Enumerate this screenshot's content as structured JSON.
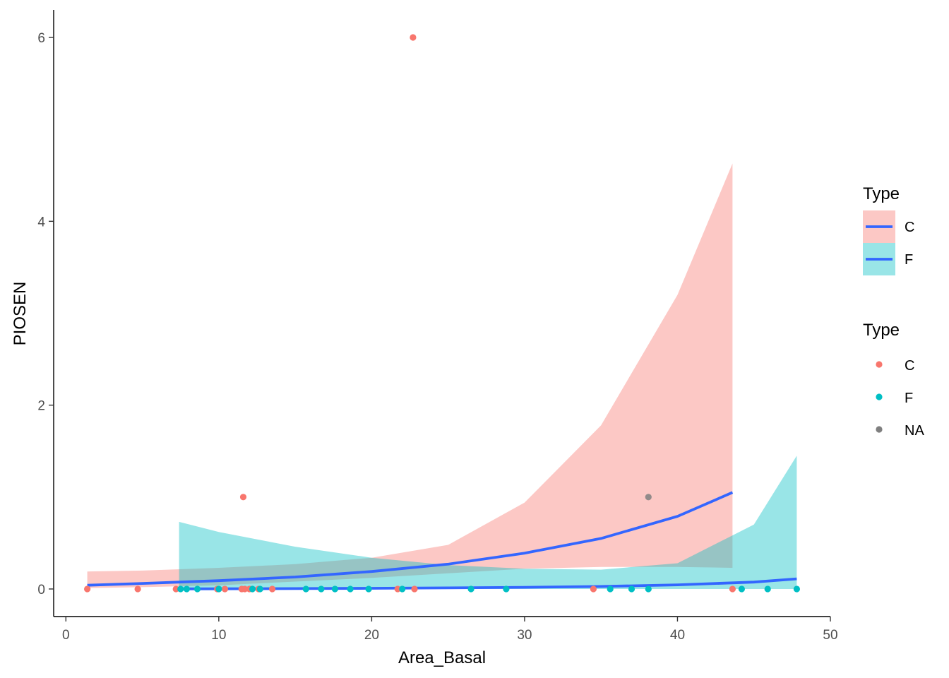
{
  "chart_data": {
    "type": "scatter",
    "xlabel": "Area_Basal",
    "ylabel": "PIOSEN",
    "xlim": [
      -0.8,
      50
    ],
    "ylim": [
      -0.3,
      6.3
    ],
    "x_ticks": [
      0,
      10,
      20,
      30,
      40,
      50
    ],
    "y_ticks": [
      0,
      2,
      4,
      6
    ],
    "grid": false,
    "colors": {
      "C": "#F8766D",
      "F": "#00BFC4",
      "NA": "#7F7F7F",
      "fit_line": "#3366FF"
    },
    "points": {
      "C": [
        {
          "x": 1.4,
          "y": 0
        },
        {
          "x": 4.7,
          "y": 0
        },
        {
          "x": 7.2,
          "y": 0
        },
        {
          "x": 9.9,
          "y": 0
        },
        {
          "x": 10.4,
          "y": 0
        },
        {
          "x": 11.5,
          "y": 0
        },
        {
          "x": 11.7,
          "y": 0
        },
        {
          "x": 12.0,
          "y": 0
        },
        {
          "x": 12.6,
          "y": 0
        },
        {
          "x": 13.5,
          "y": 0
        },
        {
          "x": 21.7,
          "y": 0
        },
        {
          "x": 22.8,
          "y": 0
        },
        {
          "x": 34.5,
          "y": 0
        },
        {
          "x": 43.6,
          "y": 0
        },
        {
          "x": 11.6,
          "y": 1
        },
        {
          "x": 22.7,
          "y": 6
        }
      ],
      "F": [
        {
          "x": 7.5,
          "y": 0
        },
        {
          "x": 7.9,
          "y": 0
        },
        {
          "x": 8.6,
          "y": 0
        },
        {
          "x": 10.0,
          "y": 0
        },
        {
          "x": 12.2,
          "y": 0
        },
        {
          "x": 12.7,
          "y": 0
        },
        {
          "x": 15.7,
          "y": 0
        },
        {
          "x": 16.7,
          "y": 0
        },
        {
          "x": 17.6,
          "y": 0
        },
        {
          "x": 18.6,
          "y": 0
        },
        {
          "x": 19.8,
          "y": 0
        },
        {
          "x": 22.0,
          "y": 0
        },
        {
          "x": 26.5,
          "y": 0
        },
        {
          "x": 28.8,
          "y": 0
        },
        {
          "x": 35.6,
          "y": 0
        },
        {
          "x": 37.0,
          "y": 0
        },
        {
          "x": 38.1,
          "y": 0
        },
        {
          "x": 44.2,
          "y": 0
        },
        {
          "x": 45.9,
          "y": 0
        },
        {
          "x": 47.8,
          "y": 0
        }
      ],
      "NA": [
        {
          "x": 38.1,
          "y": 1
        }
      ]
    },
    "fits": [
      {
        "group": "C",
        "x": [
          1.4,
          5,
          10,
          15,
          20,
          25,
          30,
          35,
          40,
          43.6
        ],
        "y": [
          0.04,
          0.06,
          0.09,
          0.13,
          0.19,
          0.27,
          0.39,
          0.55,
          0.79,
          1.05
        ],
        "lower": [
          0.01,
          0.02,
          0.04,
          0.08,
          0.12,
          0.17,
          0.22,
          0.24,
          0.24,
          0.23
        ],
        "upper": [
          0.19,
          0.2,
          0.23,
          0.27,
          0.34,
          0.48,
          0.94,
          1.78,
          3.2,
          4.63
        ]
      },
      {
        "group": "F",
        "x": [
          7.4,
          10,
          15,
          20,
          25,
          30,
          35,
          40,
          45,
          47.8
        ],
        "y": [
          0.001,
          0.002,
          0.004,
          0.007,
          0.012,
          0.018,
          0.027,
          0.045,
          0.075,
          0.11
        ],
        "lower": [
          0,
          0,
          0,
          0,
          0,
          0,
          0,
          0,
          0,
          0
        ],
        "upper": [
          0.73,
          0.62,
          0.46,
          0.34,
          0.26,
          0.22,
          0.21,
          0.28,
          0.7,
          1.45
        ]
      }
    ],
    "legends": [
      {
        "title": "Type",
        "kind": "ribbon-line",
        "entries": [
          "C",
          "F"
        ]
      },
      {
        "title": "Type",
        "kind": "point",
        "entries": [
          "C",
          "F",
          "NA"
        ]
      }
    ]
  }
}
